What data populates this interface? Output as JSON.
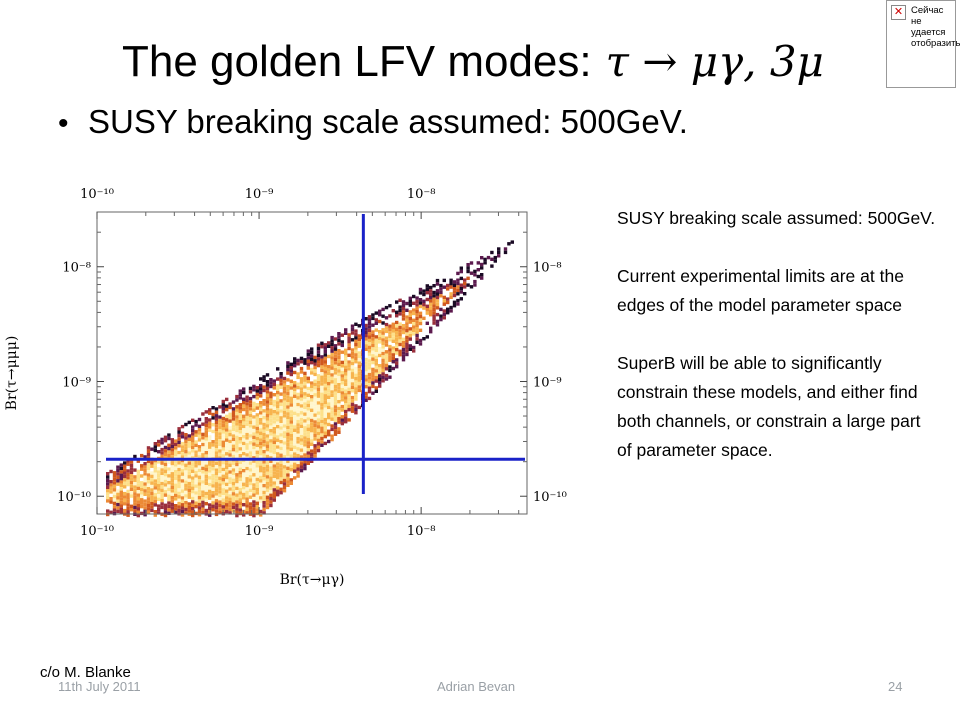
{
  "slide": {
    "title_text": "The golden LFV modes:",
    "title_math": "τ → μγ, 3μ",
    "bullet": "SUSY breaking scale assumed: 500GeV.",
    "side_paragraphs": [
      "SUSY breaking scale assumed: 500GeV.",
      "Current experimental limits are at the edges of the model parameter space",
      "SuperB will be able to significantly constrain these models, and either find both channels, or constrain a large part of parameter space."
    ],
    "credit": "c/o M. Blanke",
    "footer": {
      "date": "11th July 2011",
      "author": "Adrian Bevan",
      "page": "24"
    },
    "missing_image_text": "Сейчас не удается отобразить"
  },
  "chart_data": {
    "type": "heatmap",
    "xlabel": "Br(τ→μγ)",
    "ylabel": "Br(τ→μμμ)",
    "x_scale": "log",
    "y_scale": "log",
    "xlim": [
      1e-10,
      4.5e-08
    ],
    "ylim": [
      7e-11,
      3e-08
    ],
    "x_ticks": [
      {
        "value": 1e-10,
        "label": "10⁻¹⁰"
      },
      {
        "value": 1e-09,
        "label": "10⁻⁹"
      },
      {
        "value": 1e-08,
        "label": "10⁻⁸"
      }
    ],
    "y_ticks": [
      {
        "value": 1e-10,
        "label": "10⁻¹⁰"
      },
      {
        "value": 1e-09,
        "label": "10⁻⁹"
      },
      {
        "value": 1e-08,
        "label": "10⁻⁸"
      }
    ],
    "limit_lines": [
      {
        "orientation": "vertical",
        "value": 4.4e-09,
        "color": "#1a22c8"
      },
      {
        "orientation": "horizontal",
        "value": 2.1e-10,
        "color": "#1a22c8"
      }
    ],
    "density_colors": [
      "#fff6cc",
      "#fde08a",
      "#f7b44e",
      "#ec8a35",
      "#d0581e",
      "#9a2f3c",
      "#5c1a4e",
      "#1a0a24"
    ]
  }
}
